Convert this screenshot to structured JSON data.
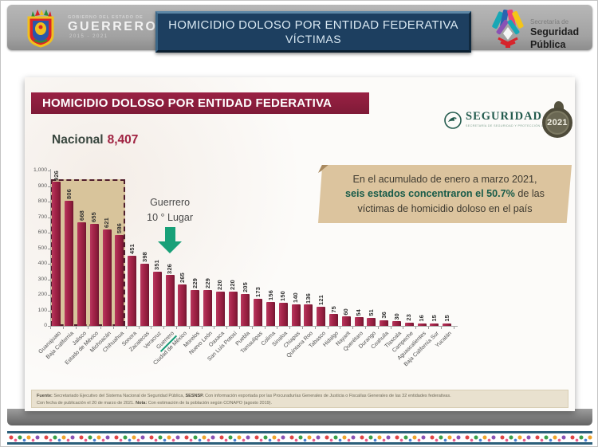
{
  "header": {
    "gov_small": "GOBIERNO DEL ESTADO DE",
    "gov_name": "GUERRERO",
    "gov_years": "2015 - 2021",
    "title_line1": "HOMICIDIO DOLOSO POR ENTIDAD FEDERATIVA",
    "title_line2": "VÍCTIMAS",
    "ssp_small": "Secretaría de",
    "ssp_name": "Seguridad Pública"
  },
  "card": {
    "title": "HOMICIDIO DOLOSO POR ENTIDAD FEDERATIVA",
    "seguridad_label": "SEGURIDAD",
    "seguridad_sublabel": "SECRETARÍA DE SEGURIDAD Y PROTECCIÓN CIUDADANA",
    "badge_2021": "2021",
    "national_label": "Nacional",
    "national_value": "8,407",
    "annotation": {
      "line1": "Guerrero",
      "line2": "10 ° Lugar"
    },
    "callout": {
      "line1": "En el acumulado de enero a marzo 2021,",
      "line2_bold": "seis estados concentraron el 50.7%",
      "line2_rest": " de las",
      "line3": "víctimas de homicidio doloso en el país"
    },
    "footer": {
      "fuente_label": "Fuente:",
      "fuente_text1": " Secretariado Ejecutivo del Sistema Nacional de Seguridad Pública, ",
      "sesnsp": "SESNSP.",
      "fuente_text2": " Con información exportada por las Procuradurías Generales de Justicia o Fiscalías Generales de las 32 entidades federativas.",
      "line2_start": "Con fecha de publicación el 20 de marzo de 2021. ",
      "nota_label": "Nota:",
      "nota_text": " Con estimación de la población según CONAPO (agosto 2019)."
    }
  },
  "chart_data": {
    "type": "bar",
    "title": "HOMICIDIO DOLOSO POR ENTIDAD FEDERATIVA",
    "national_total": 8407,
    "categories": [
      "Guanajuato",
      "Baja California",
      "Jalisco",
      "Estado de México",
      "Michoacán",
      "Chihuahua",
      "Sonora",
      "Zacatecas",
      "Veracruz",
      "Guerrero",
      "Ciudad de México",
      "Morelos",
      "Nuevo León",
      "Oaxaca",
      "San Luis Potosí",
      "Puebla",
      "Tamaulipas",
      "Colima",
      "Sinaloa",
      "Chiapas",
      "Quintana Roo",
      "Tabasco",
      "Hidalgo",
      "Nayarit",
      "Querétaro",
      "Durango",
      "Coahuila",
      "Tlaxcala",
      "Campeche",
      "Aguascalientes",
      "Baja California Sur",
      "Yucatán"
    ],
    "values": [
      926,
      806,
      668,
      655,
      621,
      586,
      451,
      398,
      351,
      326,
      265,
      229,
      229,
      220,
      220,
      205,
      173,
      156,
      150,
      140,
      136,
      121,
      75,
      60,
      54,
      51,
      36,
      30,
      23,
      16,
      15,
      15
    ],
    "ylim": [
      0,
      1000
    ],
    "yticks": [
      "0",
      "100",
      "200",
      "300",
      "400",
      "500",
      "600",
      "700",
      "800",
      "900",
      "1,000"
    ],
    "grid": false,
    "legend": "none",
    "highlight_first_n": 6,
    "highlighted_state": "Guerrero",
    "bar_color": "#a42449",
    "highlight_fill": "#d5c094",
    "accent_green": "#18a078"
  },
  "colors": {
    "maroon": "#8e1e3e",
    "navy": "#1d3f60",
    "tan": "#dcc49e",
    "ribbon_border": "#2c5f7a"
  }
}
